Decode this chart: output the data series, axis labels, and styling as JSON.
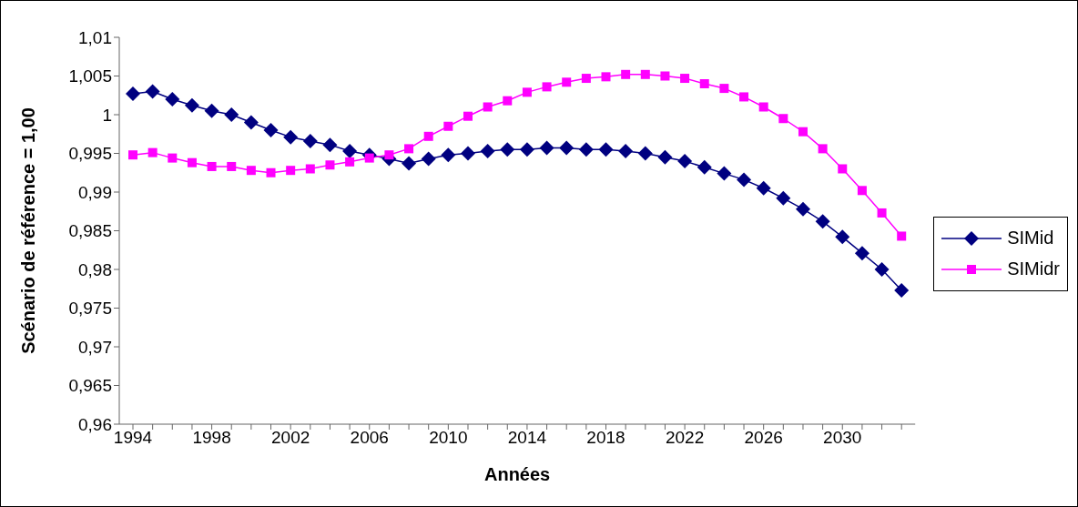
{
  "chart_data": {
    "type": "line",
    "xlabel": "Années",
    "ylabel": "Scénario de référence = 1,00",
    "categories": [
      "1994",
      null,
      null,
      null,
      "1998",
      null,
      null,
      null,
      "2002",
      null,
      null,
      null,
      "2006",
      null,
      null,
      null,
      "2010",
      null,
      null,
      null,
      "2014",
      null,
      null,
      null,
      "2018",
      null,
      null,
      null,
      "2022",
      null,
      null,
      null,
      "2026",
      null,
      null,
      null,
      "2030",
      null,
      null,
      null
    ],
    "series": [
      {
        "name": "SIMid",
        "color": "#000080",
        "marker": "diamond",
        "values": [
          1.0027,
          1.003,
          1.002,
          1.0012,
          1.0005,
          1.0,
          0.999,
          0.998,
          0.9971,
          0.9966,
          0.9961,
          0.9953,
          0.9948,
          0.9943,
          0.9937,
          0.9943,
          0.9948,
          0.995,
          0.9953,
          0.9955,
          0.9955,
          0.9957,
          0.9957,
          0.9955,
          0.9955,
          0.9953,
          0.995,
          0.9945,
          0.994,
          0.9932,
          0.9924,
          0.9916,
          0.9905,
          0.9892,
          0.9878,
          0.9862,
          0.9842,
          0.9821,
          0.98,
          0.9773
        ]
      },
      {
        "name": "SIMidr",
        "color": "#ff00ff",
        "marker": "square",
        "values": [
          0.9948,
          0.9951,
          0.9944,
          0.9938,
          0.9933,
          0.9933,
          0.9928,
          0.9925,
          0.9928,
          0.993,
          0.9935,
          0.9939,
          0.9944,
          0.9948,
          0.9956,
          0.9972,
          0.9985,
          0.9998,
          1.001,
          1.0018,
          1.0029,
          1.0036,
          1.0042,
          1.0047,
          1.0049,
          1.0052,
          1.0052,
          1.005,
          1.0047,
          1.004,
          1.0034,
          1.0023,
          1.001,
          0.9995,
          0.9978,
          0.9956,
          0.993,
          0.9902,
          0.9873,
          0.9843
        ]
      }
    ],
    "ylim": [
      0.96,
      1.01
    ],
    "yticks": [
      {
        "value": 0.96,
        "label": "0,96"
      },
      {
        "value": 0.965,
        "label": "0,965"
      },
      {
        "value": 0.97,
        "label": "0,97"
      },
      {
        "value": 0.975,
        "label": "0,975"
      },
      {
        "value": 0.98,
        "label": "0,98"
      },
      {
        "value": 0.985,
        "label": "0,985"
      },
      {
        "value": 0.99,
        "label": "0,99"
      },
      {
        "value": 0.995,
        "label": "0,995"
      },
      {
        "value": 1,
        "label": "1"
      },
      {
        "value": 1.005,
        "label": "1,005"
      },
      {
        "value": 1.01,
        "label": "1,01"
      }
    ],
    "grid": false,
    "legend": "right"
  }
}
